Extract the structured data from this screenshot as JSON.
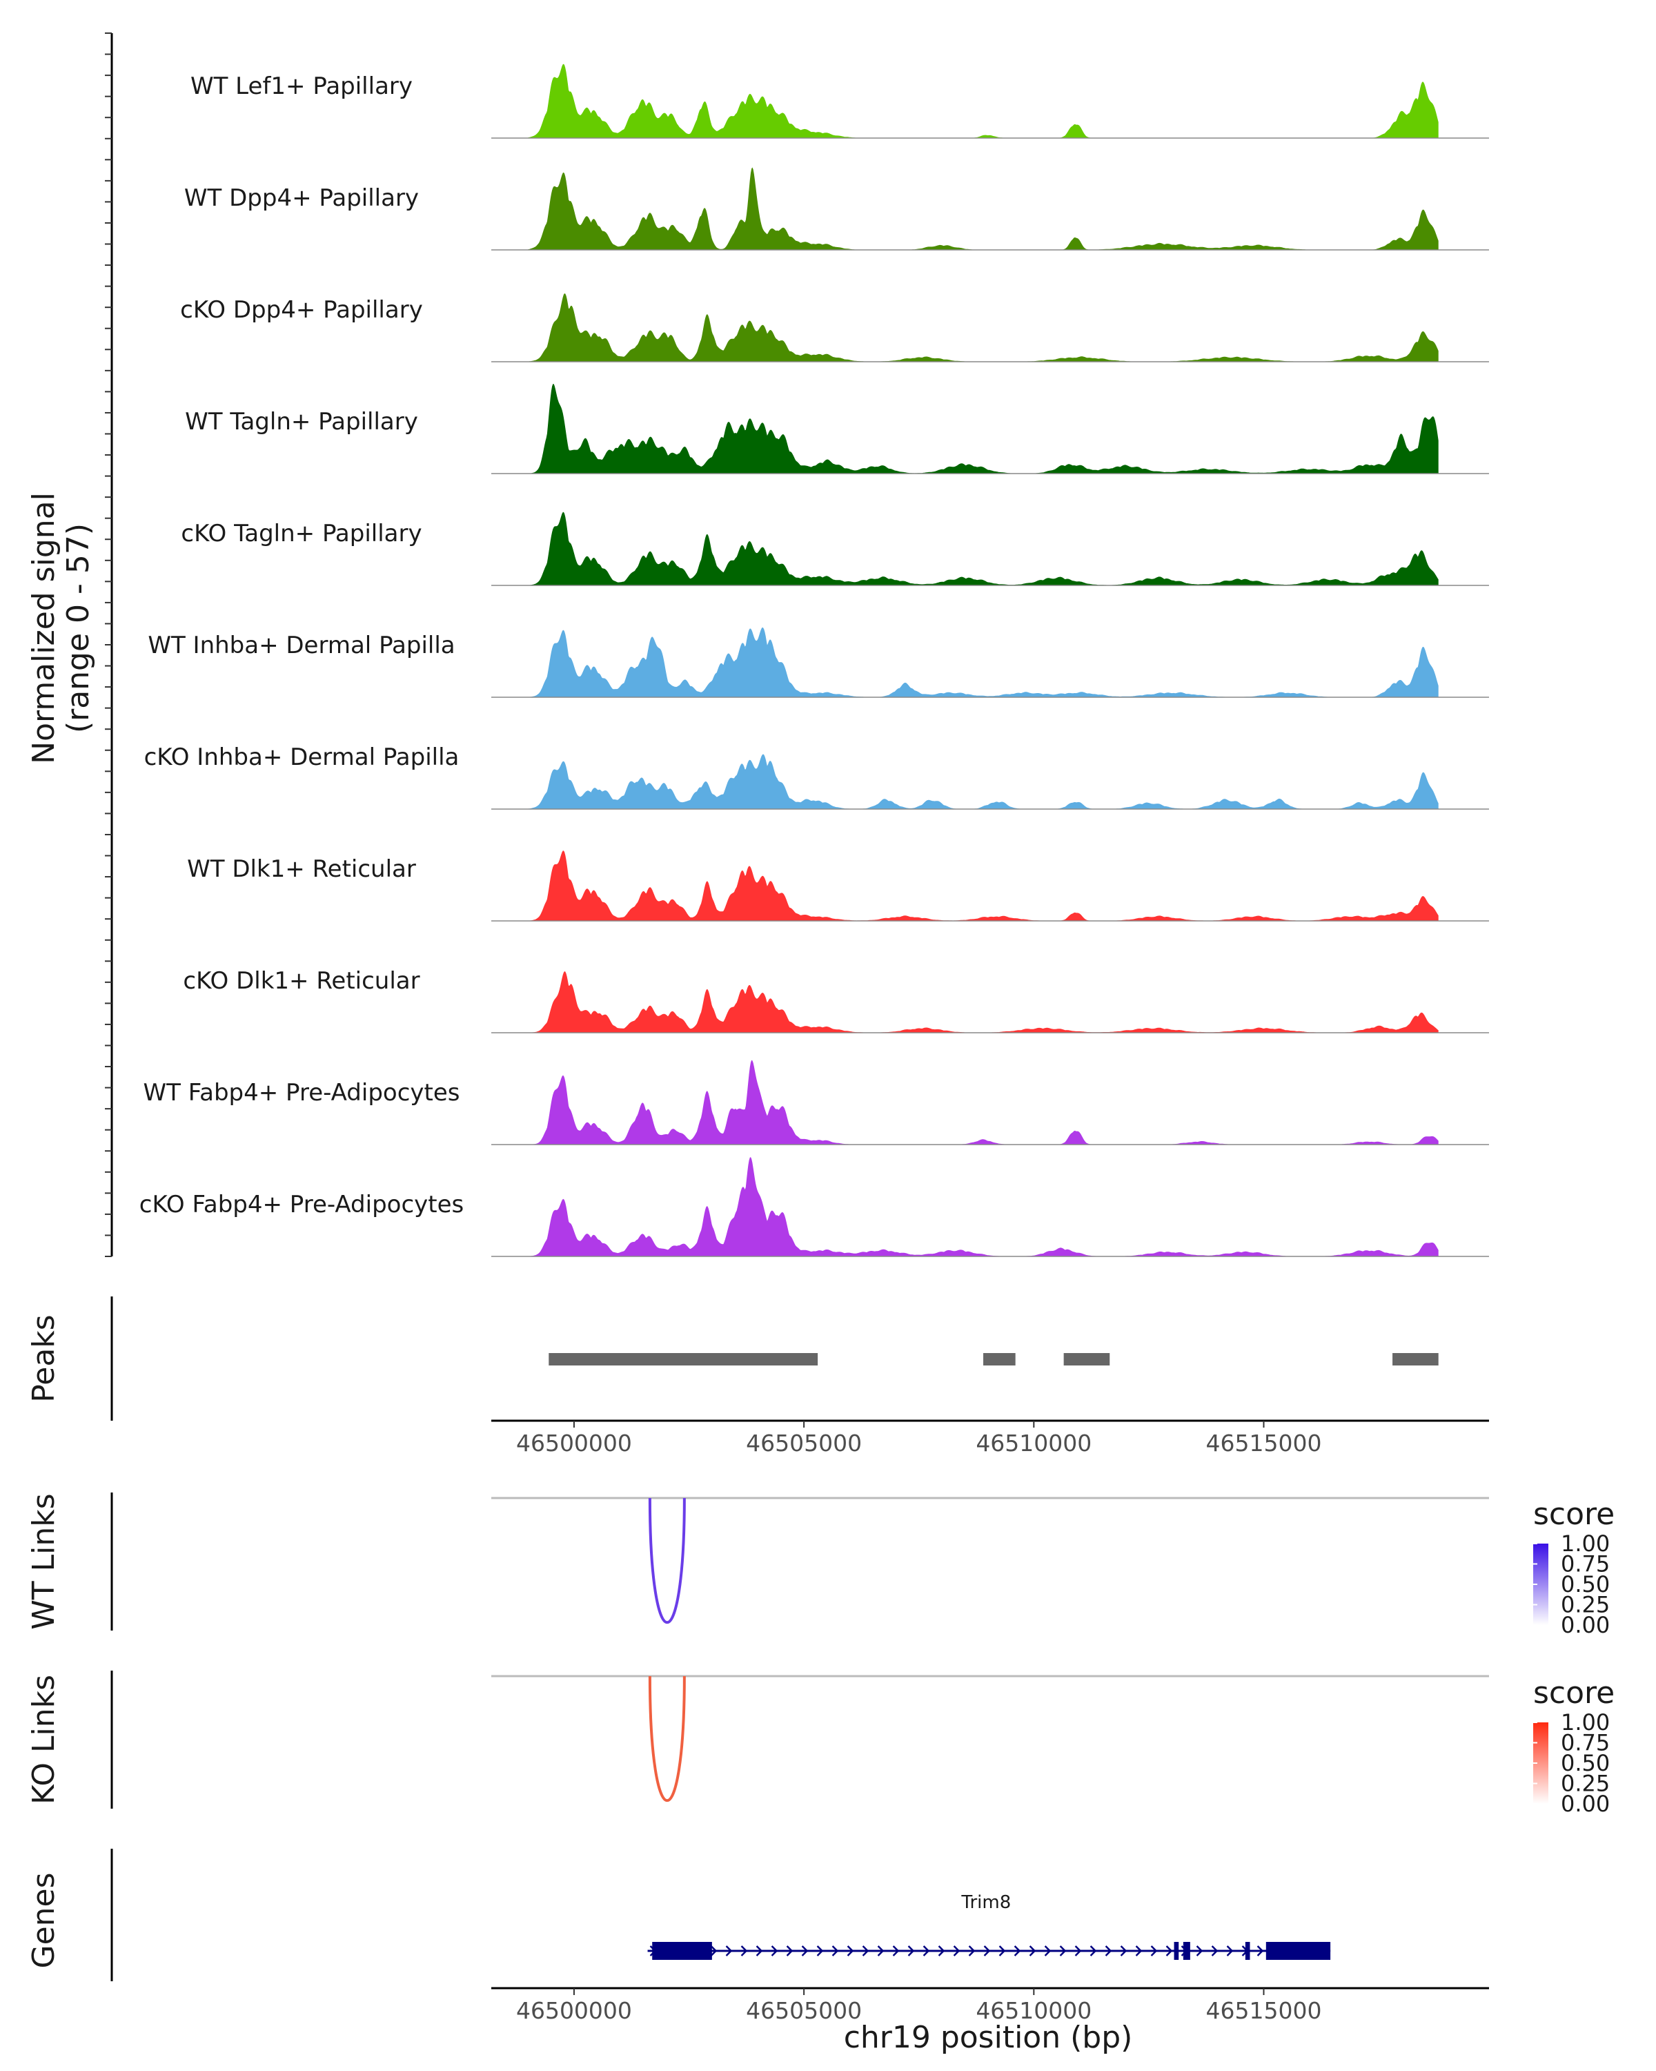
{
  "chart_data": {
    "type": "area",
    "title": "",
    "chromosome": "chr19",
    "xlabel": "chr19 position (bp)",
    "ylabel_line1": "Normalized signal",
    "ylabel_line2": "(range 0 - 57)",
    "xlim": [
      46498200,
      46519900
    ],
    "ylim": [
      0,
      57
    ],
    "x_ticks": [
      46500000,
      46505000,
      46510000,
      46515000
    ],
    "x_tick_labels": [
      "46500000",
      "46505000",
      "46510000",
      "46515000"
    ],
    "data_span": [
      46499000,
      46518800
    ],
    "tracks": [
      {
        "label": "WT Lef1+ Papillary",
        "color": "#66cc00",
        "peaks": [
          [
            46499700,
            46,
            220
          ],
          [
            46500400,
            18,
            250
          ],
          [
            46501500,
            24,
            250
          ],
          [
            46502100,
            14,
            180
          ],
          [
            46502800,
            22,
            130
          ],
          [
            46503800,
            24,
            360
          ],
          [
            46504400,
            12,
            300
          ],
          [
            46505200,
            4,
            400
          ],
          [
            46509000,
            2,
            150
          ],
          [
            46510900,
            10,
            120
          ],
          [
            46518000,
            14,
            220
          ],
          [
            46518500,
            32,
            200
          ]
        ]
      },
      {
        "label": "WT Dpp4+ Papillary",
        "color": "#4a8c00",
        "peaks": [
          [
            46499700,
            48,
            220
          ],
          [
            46500400,
            20,
            250
          ],
          [
            46501600,
            22,
            250
          ],
          [
            46502200,
            14,
            180
          ],
          [
            46502800,
            26,
            130
          ],
          [
            46503600,
            18,
            140
          ],
          [
            46503900,
            48,
            90
          ],
          [
            46504400,
            14,
            300
          ],
          [
            46505300,
            4,
            350
          ],
          [
            46508000,
            3,
            300
          ],
          [
            46510900,
            9,
            100
          ],
          [
            46512800,
            4,
            600
          ],
          [
            46514800,
            3,
            500
          ],
          [
            46517900,
            7,
            200
          ],
          [
            46518500,
            24,
            180
          ]
        ]
      },
      {
        "label": "cKO Dpp4+ Papillary",
        "color": "#4a8c00",
        "peaks": [
          [
            46499800,
            40,
            240
          ],
          [
            46500500,
            18,
            250
          ],
          [
            46501600,
            18,
            260
          ],
          [
            46502100,
            14,
            180
          ],
          [
            46502900,
            26,
            140
          ],
          [
            46503700,
            22,
            300
          ],
          [
            46504300,
            16,
            280
          ],
          [
            46505300,
            5,
            400
          ],
          [
            46507600,
            3,
            400
          ],
          [
            46511000,
            3,
            500
          ],
          [
            46514300,
            3,
            600
          ],
          [
            46517300,
            4,
            400
          ],
          [
            46518500,
            18,
            220
          ]
        ]
      },
      {
        "label": "WT Tagln+ Papillary",
        "color": "#006400",
        "peaks": [
          [
            46499600,
            57,
            160
          ],
          [
            46500200,
            20,
            200
          ],
          [
            46501000,
            18,
            300
          ],
          [
            46501700,
            20,
            300
          ],
          [
            46502400,
            14,
            200
          ],
          [
            46503300,
            24,
            250
          ],
          [
            46503900,
            30,
            300
          ],
          [
            46504500,
            20,
            250
          ],
          [
            46505500,
            8,
            300
          ],
          [
            46506600,
            5,
            300
          ],
          [
            46508500,
            6,
            400
          ],
          [
            46510800,
            6,
            300
          ],
          [
            46512000,
            5,
            400
          ],
          [
            46513800,
            3,
            500
          ],
          [
            46516000,
            3,
            500
          ],
          [
            46517300,
            6,
            300
          ],
          [
            46518000,
            22,
            180
          ],
          [
            46518600,
            40,
            180
          ]
        ]
      },
      {
        "label": "cKO Tagln+ Papillary",
        "color": "#006400",
        "peaks": [
          [
            46499700,
            46,
            200
          ],
          [
            46500400,
            18,
            250
          ],
          [
            46501600,
            20,
            250
          ],
          [
            46502200,
            14,
            200
          ],
          [
            46502900,
            28,
            150
          ],
          [
            46503700,
            24,
            300
          ],
          [
            46504300,
            16,
            280
          ],
          [
            46505300,
            6,
            400
          ],
          [
            46506700,
            5,
            400
          ],
          [
            46508500,
            5,
            400
          ],
          [
            46510500,
            5,
            400
          ],
          [
            46512700,
            5,
            400
          ],
          [
            46514500,
            4,
            400
          ],
          [
            46516400,
            4,
            400
          ],
          [
            46517800,
            8,
            300
          ],
          [
            46518400,
            20,
            220
          ]
        ]
      },
      {
        "label": "WT Inhba+ Dermal Papilla",
        "color": "#5dade2",
        "peaks": [
          [
            46499700,
            42,
            200
          ],
          [
            46500400,
            20,
            250
          ],
          [
            46501400,
            22,
            250
          ],
          [
            46501800,
            32,
            150
          ],
          [
            46502400,
            10,
            200
          ],
          [
            46503200,
            18,
            200
          ],
          [
            46503800,
            34,
            300
          ],
          [
            46504300,
            26,
            280
          ],
          [
            46505400,
            3,
            400
          ],
          [
            46507200,
            8,
            200
          ],
          [
            46508200,
            3,
            400
          ],
          [
            46509800,
            3,
            400
          ],
          [
            46511000,
            3,
            400
          ],
          [
            46513000,
            3,
            500
          ],
          [
            46515500,
            3,
            400
          ],
          [
            46517900,
            10,
            200
          ],
          [
            46518500,
            30,
            180
          ]
        ]
      },
      {
        "label": "cKO Inhba+ Dermal Papilla",
        "color": "#5dade2",
        "peaks": [
          [
            46499700,
            30,
            220
          ],
          [
            46500500,
            14,
            250
          ],
          [
            46501400,
            20,
            250
          ],
          [
            46502000,
            14,
            200
          ],
          [
            46502800,
            16,
            200
          ],
          [
            46503600,
            24,
            260
          ],
          [
            46504200,
            30,
            280
          ],
          [
            46505200,
            6,
            300
          ],
          [
            46506800,
            6,
            200
          ],
          [
            46507800,
            6,
            200
          ],
          [
            46509200,
            5,
            200
          ],
          [
            46510900,
            5,
            150
          ],
          [
            46512500,
            4,
            300
          ],
          [
            46514200,
            6,
            300
          ],
          [
            46515300,
            6,
            200
          ],
          [
            46517100,
            4,
            200
          ],
          [
            46517900,
            6,
            200
          ],
          [
            46518500,
            22,
            160
          ]
        ]
      },
      {
        "label": "WT Dlk1+ Reticular",
        "color": "#ff3333",
        "peaks": [
          [
            46499700,
            44,
            200
          ],
          [
            46500400,
            20,
            250
          ],
          [
            46501600,
            20,
            250
          ],
          [
            46502200,
            12,
            180
          ],
          [
            46502900,
            22,
            130
          ],
          [
            46503700,
            30,
            260
          ],
          [
            46504300,
            22,
            280
          ],
          [
            46505200,
            3,
            400
          ],
          [
            46507200,
            3,
            400
          ],
          [
            46509200,
            3,
            400
          ],
          [
            46510900,
            6,
            120
          ],
          [
            46512700,
            3,
            400
          ],
          [
            46514800,
            3,
            400
          ],
          [
            46516900,
            3,
            400
          ],
          [
            46517900,
            5,
            300
          ],
          [
            46518500,
            14,
            180
          ]
        ]
      },
      {
        "label": "cKO Dlk1+ Reticular",
        "color": "#ff3333",
        "peaks": [
          [
            46499800,
            36,
            220
          ],
          [
            46500500,
            14,
            250
          ],
          [
            46501600,
            16,
            260
          ],
          [
            46502200,
            12,
            180
          ],
          [
            46502900,
            24,
            140
          ],
          [
            46503700,
            26,
            280
          ],
          [
            46504300,
            18,
            280
          ],
          [
            46505300,
            4,
            400
          ],
          [
            46507600,
            3,
            400
          ],
          [
            46510200,
            3,
            500
          ],
          [
            46512600,
            3,
            500
          ],
          [
            46515000,
            3,
            500
          ],
          [
            46517500,
            4,
            300
          ],
          [
            46518400,
            12,
            200
          ]
        ]
      },
      {
        "label": "WT Fabp4+ Pre-Adipocytes",
        "color": "#b03ae8",
        "peaks": [
          [
            46499700,
            44,
            180
          ],
          [
            46500400,
            14,
            250
          ],
          [
            46501500,
            26,
            200
          ],
          [
            46502200,
            10,
            180
          ],
          [
            46502900,
            30,
            150
          ],
          [
            46503500,
            26,
            150
          ],
          [
            46503900,
            50,
            120
          ],
          [
            46504400,
            26,
            250
          ],
          [
            46505300,
            3,
            300
          ],
          [
            46508900,
            3,
            200
          ],
          [
            46510900,
            10,
            120
          ],
          [
            46513600,
            2,
            300
          ],
          [
            46517300,
            2,
            300
          ],
          [
            46518600,
            6,
            150
          ]
        ]
      },
      {
        "label": "cKO Fabp4+ Pre-Adipocytes",
        "color": "#b03ae8",
        "peaks": [
          [
            46499700,
            36,
            200
          ],
          [
            46500400,
            14,
            250
          ],
          [
            46501500,
            14,
            250
          ],
          [
            46502300,
            8,
            200
          ],
          [
            46502900,
            28,
            150
          ],
          [
            46503600,
            34,
            200
          ],
          [
            46503900,
            44,
            140
          ],
          [
            46504400,
            30,
            240
          ],
          [
            46505400,
            4,
            400
          ],
          [
            46506700,
            4,
            400
          ],
          [
            46508300,
            4,
            400
          ],
          [
            46510600,
            5,
            300
          ],
          [
            46512900,
            3,
            400
          ],
          [
            46514600,
            3,
            400
          ],
          [
            46517300,
            4,
            400
          ],
          [
            46518600,
            10,
            150
          ]
        ]
      }
    ],
    "peaks_track": {
      "label": "Peaks",
      "color": "#666666",
      "regions": [
        [
          46499450,
          46505300
        ],
        [
          46508900,
          46509600
        ],
        [
          46510650,
          46511650
        ],
        [
          46517800,
          46518800
        ]
      ]
    },
    "links_tracks": [
      {
        "label": "WT Links",
        "legend_title": "score",
        "color": "#6a3de8",
        "gradient": [
          "#ffffff",
          "#3a10e6"
        ],
        "legend_ticks": [
          "1.00",
          "0.75",
          "0.50",
          "0.25",
          "0.00"
        ],
        "links": [
          {
            "start": 46501650,
            "end": 46502400,
            "score": 0.75
          }
        ]
      },
      {
        "label": "KO Links",
        "legend_title": "score",
        "color": "#f06040",
        "gradient": [
          "#ffffff",
          "#ff2a10"
        ],
        "legend_ticks": [
          "1.00",
          "0.75",
          "0.50",
          "0.25",
          "0.00"
        ],
        "links": [
          {
            "start": 46501650,
            "end": 46502400,
            "score": 0.75
          }
        ]
      }
    ],
    "genes_track": {
      "label": "Genes",
      "color": "#000080",
      "genes": [
        {
          "name": "Trim8",
          "strand": "+",
          "start": 46501600,
          "end": 46516450,
          "exons": [
            [
              46501700,
              46503000
            ],
            [
              46513050,
              46513150
            ],
            [
              46513250,
              46513400
            ],
            [
              46514600,
              46514700
            ],
            [
              46515050,
              46516450
            ]
          ]
        }
      ]
    }
  }
}
